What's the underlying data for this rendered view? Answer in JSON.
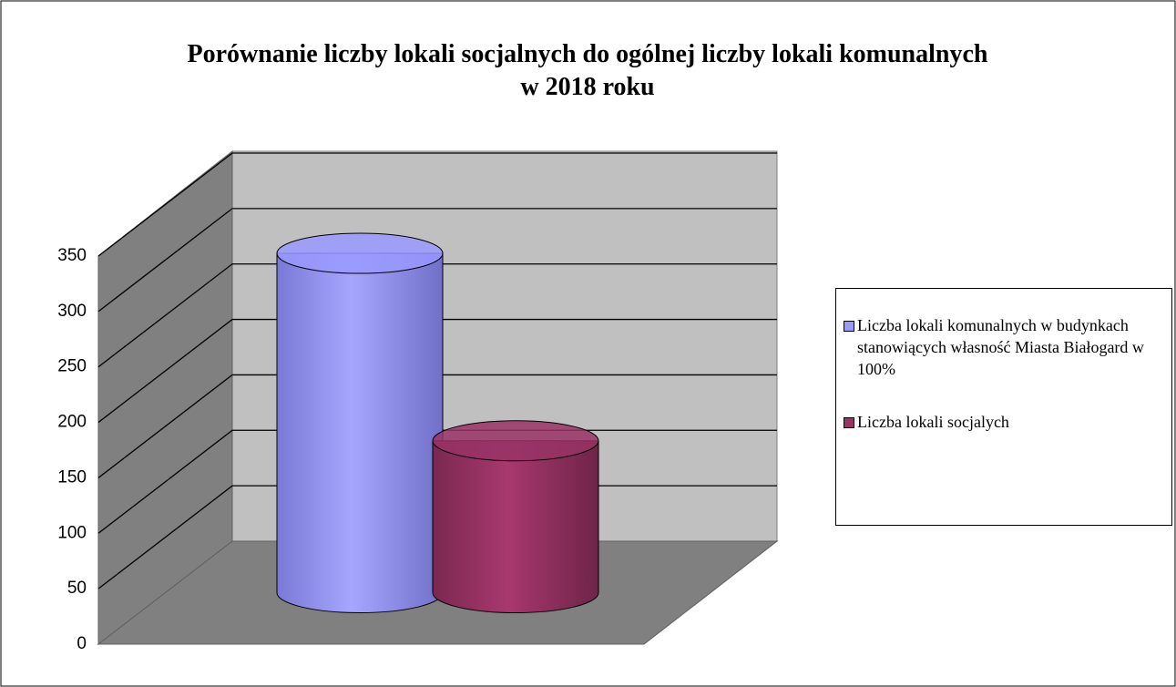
{
  "chart_data": {
    "type": "cylinder",
    "title": "Porównanie liczby lokali socjalnych do ogólnej liczby lokali komunalnych w 2018 roku",
    "categories": [
      null
    ],
    "series": [
      {
        "name": "Liczba lokali komunalnych w budynkach stanowiących własność Miasta Białogard w 100%",
        "color": "#9999ff",
        "values": [
          306
        ]
      },
      {
        "name": "Liczba lokali socjalych",
        "color": "#993366",
        "values": [
          137
        ]
      }
    ],
    "ylim": [
      0,
      350
    ],
    "yticks": [
      0,
      50,
      100,
      150,
      200,
      250,
      300,
      350
    ],
    "grid": true,
    "legend": "right"
  }
}
